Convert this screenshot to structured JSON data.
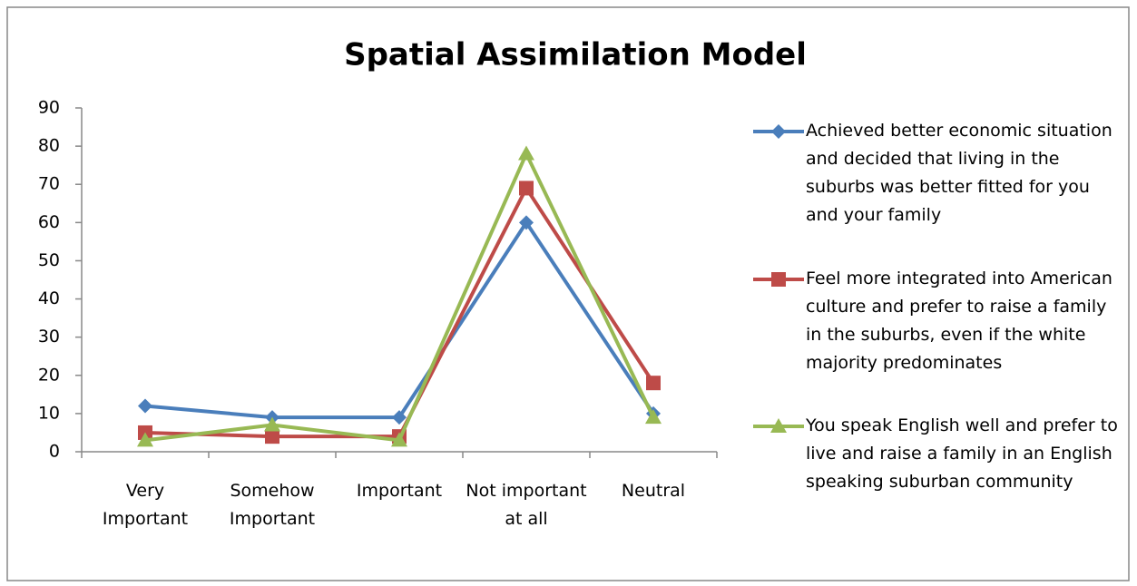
{
  "chart_data": {
    "type": "line",
    "title": "Spatial Assimilation Model",
    "categories": [
      "Very Important",
      "Somehow Important",
      "Important",
      "Not important at all",
      "Neutral"
    ],
    "series": [
      {
        "name": "Achieved better economic situation and decided that living in the suburbs was better fitted for you and your family",
        "color": "#4a7ebb",
        "marker": "diamond",
        "values": [
          12,
          9,
          9,
          60,
          10
        ]
      },
      {
        "name": "Feel more integrated into American culture and prefer to raise a family in the suburbs, even if the white majority predominates",
        "color": "#be4b48",
        "marker": "square",
        "values": [
          5,
          4,
          4,
          69,
          18
        ]
      },
      {
        "name": "You speak English well and prefer to live and raise a family in an English speaking suburban community",
        "color": "#98b954",
        "marker": "triangle",
        "values": [
          3,
          7,
          3,
          78,
          9
        ]
      }
    ],
    "ylim": [
      0,
      90
    ],
    "yticks": [
      0,
      10,
      20,
      30,
      40,
      50,
      60,
      70,
      80,
      90
    ],
    "grid": false,
    "legend": "right"
  }
}
